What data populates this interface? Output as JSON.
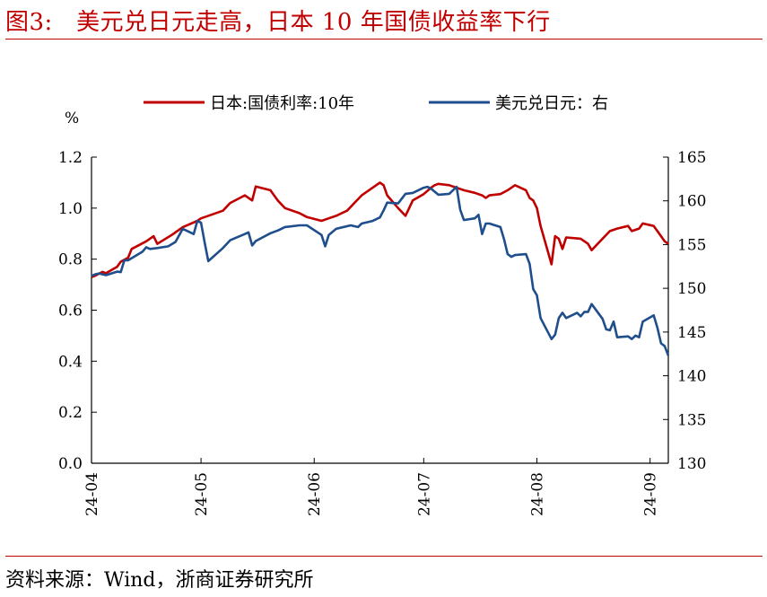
{
  "figure": {
    "title": "图3:   美元兑日元走高，日本 10 年国债收益率下行",
    "source": "资料来源：Wind，浙商证券研究所",
    "colors": {
      "title": "#c00000",
      "rule": "#c00000"
    }
  },
  "chart_data": {
    "type": "line",
    "legend": {
      "placement": "top"
    },
    "grid": false,
    "left_axis": {
      "unit_label": "%",
      "range": [
        0.0,
        1.2
      ],
      "ticks": [
        "0.0",
        "0.2",
        "0.4",
        "0.6",
        "0.8",
        "1.0",
        "1.2"
      ]
    },
    "right_axis": {
      "range": [
        130,
        165
      ],
      "ticks": [
        "130",
        "135",
        "140",
        "145",
        "150",
        "155",
        "160",
        "165"
      ]
    },
    "x_axis": {
      "start": "2024-04-01",
      "end": "2024-09-06",
      "ticks": [
        {
          "date": "2024-04-01",
          "label": "24-04"
        },
        {
          "date": "2024-05-01",
          "label": "24-05"
        },
        {
          "date": "2024-06-01",
          "label": "24-06"
        },
        {
          "date": "2024-07-01",
          "label": "24-07"
        },
        {
          "date": "2024-08-01",
          "label": "24-08"
        },
        {
          "date": "2024-09-01",
          "label": "24-09"
        }
      ]
    },
    "series": [
      {
        "name": "日本:国债利率:10年",
        "axis": "left",
        "color": "#c00000",
        "points": [
          [
            "2024-04-01",
            0.73
          ],
          [
            "2024-04-02",
            0.735
          ],
          [
            "2024-04-04",
            0.75
          ],
          [
            "2024-04-05",
            0.745
          ],
          [
            "2024-04-08",
            0.77
          ],
          [
            "2024-04-09",
            0.79
          ],
          [
            "2024-04-11",
            0.805
          ],
          [
            "2024-04-12",
            0.84
          ],
          [
            "2024-04-16",
            0.87
          ],
          [
            "2024-04-18",
            0.89
          ],
          [
            "2024-04-19",
            0.86
          ],
          [
            "2024-04-23",
            0.895
          ],
          [
            "2024-04-26",
            0.925
          ],
          [
            "2024-04-30",
            0.95
          ],
          [
            "2024-05-01",
            0.96
          ],
          [
            "2024-05-02",
            0.965
          ],
          [
            "2024-05-07",
            0.99
          ],
          [
            "2024-05-09",
            1.02
          ],
          [
            "2024-05-13",
            1.05
          ],
          [
            "2024-05-15",
            1.03
          ],
          [
            "2024-05-16",
            1.085
          ],
          [
            "2024-05-20",
            1.07
          ],
          [
            "2024-05-22",
            1.03
          ],
          [
            "2024-05-24",
            1.0
          ],
          [
            "2024-05-28",
            0.98
          ],
          [
            "2024-05-30",
            0.965
          ],
          [
            "2024-06-03",
            0.95
          ],
          [
            "2024-06-05",
            0.96
          ],
          [
            "2024-06-07",
            0.97
          ],
          [
            "2024-06-10",
            0.99
          ],
          [
            "2024-06-12",
            1.02
          ],
          [
            "2024-06-14",
            1.05
          ],
          [
            "2024-06-17",
            1.08
          ],
          [
            "2024-06-19",
            1.1
          ],
          [
            "2024-06-20",
            1.09
          ],
          [
            "2024-06-21",
            1.05
          ],
          [
            "2024-06-24",
            1.0
          ],
          [
            "2024-06-26",
            0.97
          ],
          [
            "2024-06-27",
            1.0
          ],
          [
            "2024-06-28",
            1.03
          ],
          [
            "2024-07-01",
            1.055
          ],
          [
            "2024-07-03",
            1.08
          ],
          [
            "2024-07-04",
            1.09
          ],
          [
            "2024-07-05",
            1.095
          ],
          [
            "2024-07-08",
            1.09
          ],
          [
            "2024-07-10",
            1.08
          ],
          [
            "2024-07-12",
            1.07
          ],
          [
            "2024-07-15",
            1.06
          ],
          [
            "2024-07-17",
            1.05
          ],
          [
            "2024-07-18",
            1.04
          ],
          [
            "2024-07-19",
            1.05
          ],
          [
            "2024-07-22",
            1.055
          ],
          [
            "2024-07-24",
            1.07
          ],
          [
            "2024-07-26",
            1.09
          ],
          [
            "2024-07-29",
            1.07
          ],
          [
            "2024-07-30",
            1.04
          ],
          [
            "2024-07-31",
            1.03
          ],
          [
            "2024-08-01",
            1.0
          ],
          [
            "2024-08-02",
            0.93
          ],
          [
            "2024-08-05",
            0.78
          ],
          [
            "2024-08-06",
            0.89
          ],
          [
            "2024-08-07",
            0.88
          ],
          [
            "2024-08-08",
            0.84
          ],
          [
            "2024-08-09",
            0.885
          ],
          [
            "2024-08-13",
            0.88
          ],
          [
            "2024-08-15",
            0.86
          ],
          [
            "2024-08-16",
            0.835
          ],
          [
            "2024-08-19",
            0.88
          ],
          [
            "2024-08-21",
            0.91
          ],
          [
            "2024-08-23",
            0.92
          ],
          [
            "2024-08-26",
            0.93
          ],
          [
            "2024-08-27",
            0.91
          ],
          [
            "2024-08-29",
            0.92
          ],
          [
            "2024-08-30",
            0.94
          ],
          [
            "2024-09-02",
            0.93
          ],
          [
            "2024-09-03",
            0.91
          ],
          [
            "2024-09-04",
            0.89
          ],
          [
            "2024-09-05",
            0.87
          ],
          [
            "2024-09-06",
            0.86
          ]
        ]
      },
      {
        "name": "美元兑日元：右",
        "axis": "right",
        "color": "#1f4e8c",
        "points": [
          [
            "2024-04-01",
            151.4
          ],
          [
            "2024-04-02",
            151.6
          ],
          [
            "2024-04-03",
            151.7
          ],
          [
            "2024-04-05",
            151.5
          ],
          [
            "2024-04-08",
            151.9
          ],
          [
            "2024-04-09",
            151.85
          ],
          [
            "2024-04-10",
            153.2
          ],
          [
            "2024-04-11",
            153.2
          ],
          [
            "2024-04-15",
            154.2
          ],
          [
            "2024-04-16",
            154.7
          ],
          [
            "2024-04-17",
            154.5
          ],
          [
            "2024-04-19",
            154.6
          ],
          [
            "2024-04-22",
            154.8
          ],
          [
            "2024-04-24",
            155.3
          ],
          [
            "2024-04-26",
            156.8
          ],
          [
            "2024-04-29",
            156.2
          ],
          [
            "2024-04-30",
            157.7
          ],
          [
            "2024-05-01",
            157.5
          ],
          [
            "2024-05-02",
            155.2
          ],
          [
            "2024-05-03",
            153.1
          ],
          [
            "2024-05-07",
            154.6
          ],
          [
            "2024-05-09",
            155.5
          ],
          [
            "2024-05-13",
            156.2
          ],
          [
            "2024-05-14",
            156.4
          ],
          [
            "2024-05-15",
            154.9
          ],
          [
            "2024-05-16",
            155.4
          ],
          [
            "2024-05-20",
            156.3
          ],
          [
            "2024-05-22",
            156.6
          ],
          [
            "2024-05-24",
            157.0
          ],
          [
            "2024-05-28",
            157.2
          ],
          [
            "2024-05-30",
            157.2
          ],
          [
            "2024-06-03",
            156.1
          ],
          [
            "2024-06-04",
            154.8
          ],
          [
            "2024-06-05",
            156.1
          ],
          [
            "2024-06-07",
            156.8
          ],
          [
            "2024-06-11",
            157.2
          ],
          [
            "2024-06-13",
            157.0
          ],
          [
            "2024-06-14",
            157.4
          ],
          [
            "2024-06-17",
            157.7
          ],
          [
            "2024-06-19",
            158.1
          ],
          [
            "2024-06-20",
            158.9
          ],
          [
            "2024-06-21",
            159.8
          ],
          [
            "2024-06-24",
            159.7
          ],
          [
            "2024-06-26",
            160.8
          ],
          [
            "2024-06-28",
            160.9
          ],
          [
            "2024-07-01",
            161.5
          ],
          [
            "2024-07-02",
            161.6
          ],
          [
            "2024-07-03",
            161.4
          ],
          [
            "2024-07-05",
            160.7
          ],
          [
            "2024-07-08",
            160.8
          ],
          [
            "2024-07-10",
            161.6
          ],
          [
            "2024-07-11",
            159.0
          ],
          [
            "2024-07-12",
            157.8
          ],
          [
            "2024-07-15",
            158.0
          ],
          [
            "2024-07-16",
            158.4
          ],
          [
            "2024-07-17",
            156.2
          ],
          [
            "2024-07-18",
            157.4
          ],
          [
            "2024-07-19",
            157.4
          ],
          [
            "2024-07-22",
            157.0
          ],
          [
            "2024-07-23",
            155.6
          ],
          [
            "2024-07-24",
            153.9
          ],
          [
            "2024-07-25",
            153.6
          ],
          [
            "2024-07-26",
            153.8
          ],
          [
            "2024-07-29",
            153.9
          ],
          [
            "2024-07-30",
            152.8
          ],
          [
            "2024-07-31",
            149.9
          ],
          [
            "2024-08-01",
            149.2
          ],
          [
            "2024-08-02",
            146.6
          ],
          [
            "2024-08-05",
            144.2
          ],
          [
            "2024-08-06",
            144.7
          ],
          [
            "2024-08-07",
            146.6
          ],
          [
            "2024-08-08",
            147.2
          ],
          [
            "2024-08-09",
            146.6
          ],
          [
            "2024-08-12",
            147.2
          ],
          [
            "2024-08-13",
            146.8
          ],
          [
            "2024-08-14",
            147.3
          ],
          [
            "2024-08-15",
            147.3
          ],
          [
            "2024-08-16",
            148.2
          ],
          [
            "2024-08-19",
            146.5
          ],
          [
            "2024-08-20",
            145.3
          ],
          [
            "2024-08-21",
            145.2
          ],
          [
            "2024-08-22",
            146.2
          ],
          [
            "2024-08-23",
            144.4
          ],
          [
            "2024-08-26",
            144.5
          ],
          [
            "2024-08-27",
            144.2
          ],
          [
            "2024-08-28",
            144.6
          ],
          [
            "2024-08-29",
            144.4
          ],
          [
            "2024-08-30",
            146.2
          ],
          [
            "2024-09-02",
            146.9
          ],
          [
            "2024-09-03",
            145.5
          ],
          [
            "2024-09-04",
            143.7
          ],
          [
            "2024-09-05",
            143.4
          ],
          [
            "2024-09-06",
            142.3
          ]
        ]
      }
    ]
  }
}
